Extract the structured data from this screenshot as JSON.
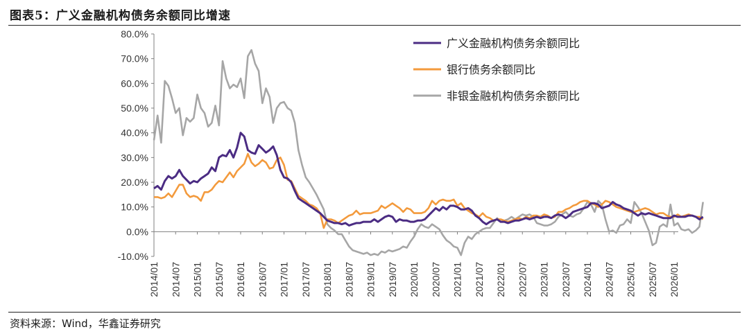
{
  "figure_title": "图表5：广义金融机构债务余额同比增速",
  "source_note": "资料来源：Wind，华鑫证券研究",
  "colors": {
    "series_broad": "#4b2c83",
    "series_bank": "#f39a3c",
    "series_nonbank": "#a6a6a6",
    "axis": "#7f7f7f"
  },
  "chart_data": {
    "type": "line",
    "title": "",
    "xlabel": "",
    "ylabel": "",
    "ylim": [
      -10,
      80
    ],
    "yticks": [
      -10,
      0,
      10,
      20,
      30,
      40,
      50,
      60,
      70,
      80
    ],
    "ytick_labels": [
      "-10.0%",
      "0.0%",
      "10.0%",
      "20.0%",
      "30.0%",
      "40.0%",
      "50.0%",
      "60.0%",
      "70.0%",
      "80.0%"
    ],
    "x_start": "2014/01",
    "x_end": "2026/01",
    "xtick_labels": [
      "2014/01",
      "2014/07",
      "2015/01",
      "2015/07",
      "2016/01",
      "2016/07",
      "2017/01",
      "2017/07",
      "2018/01",
      "2018/07",
      "2019/01",
      "2019/07",
      "2020/01",
      "2020/07",
      "2021/01",
      "2021/07",
      "2022/01",
      "2022/07",
      "2023/01",
      "2023/07",
      "2024/01",
      "2024/07",
      "2025/01",
      "2025/07",
      "2026/01"
    ],
    "legend_position": "top-right",
    "series": [
      {
        "name": "广义金融机构债务余额同比",
        "color_key": "series_broad",
        "values": [
          17.5,
          18.5,
          17.0,
          20.5,
          22.5,
          21.5,
          22.5,
          25.0,
          22.5,
          21.0,
          19.5,
          20.5,
          20.0,
          21.5,
          22.5,
          23.5,
          26.0,
          24.5,
          30.0,
          31.0,
          30.5,
          33.0,
          30.0,
          34.0,
          40.0,
          38.5,
          33.0,
          32.0,
          31.5,
          35.0,
          33.5,
          32.0,
          33.0,
          34.5,
          31.0,
          25.0,
          22.0,
          21.5,
          20.0,
          16.5,
          13.5,
          12.5,
          11.5,
          10.5,
          9.5,
          8.5,
          7.5,
          6.0,
          4.5,
          4.0,
          3.5,
          3.5,
          3.0,
          3.5,
          2.5,
          3.0,
          3.5,
          3.5,
          4.0,
          4.0,
          4.0,
          5.0,
          4.0,
          5.0,
          6.0,
          6.5,
          6.0,
          4.0,
          5.0,
          4.5,
          4.5,
          4.0,
          4.0,
          4.5,
          4.5,
          5.0,
          6.5,
          8.0,
          9.5,
          8.5,
          10.0,
          9.0,
          10.5,
          10.5,
          10.0,
          9.0,
          9.0,
          9.5,
          8.5,
          6.5,
          5.5,
          4.0,
          3.0,
          4.0,
          4.5,
          5.0,
          4.0,
          4.0,
          3.5,
          4.0,
          4.5,
          4.5,
          5.0,
          5.5,
          5.0,
          5.5,
          6.0,
          5.5,
          6.0,
          6.0,
          5.5,
          6.5,
          7.0,
          6.5,
          5.5,
          6.5,
          8.0,
          8.5,
          9.0,
          9.5,
          10.0,
          11.5,
          11.5,
          11.0,
          9.5,
          10.0,
          10.5,
          12.0,
          11.0,
          10.5,
          9.5,
          9.0,
          8.5,
          7.5,
          6.5,
          7.5,
          7.0,
          7.5,
          7.0,
          6.5,
          6.0,
          5.5,
          5.5,
          5.5,
          6.5,
          6.0,
          6.0,
          6.0,
          6.5,
          6.5,
          6.0,
          5.0,
          6.0
        ]
      },
      {
        "name": "银行债务余额同比",
        "color_key": "series_bank",
        "values": [
          14.0,
          14.0,
          13.5,
          14.0,
          15.5,
          14.0,
          16.5,
          19.0,
          19.0,
          15.5,
          14.0,
          14.5,
          14.0,
          12.5,
          16.0,
          16.0,
          17.0,
          19.0,
          20.5,
          20.0,
          22.0,
          24.0,
          22.0,
          24.5,
          26.0,
          27.5,
          31.5,
          28.0,
          26.5,
          27.5,
          29.0,
          28.0,
          25.5,
          26.0,
          29.0,
          30.0,
          27.0,
          21.0,
          20.5,
          17.5,
          14.5,
          13.5,
          12.5,
          11.0,
          10.5,
          9.5,
          7.5,
          1.5,
          5.0,
          5.0,
          4.5,
          3.5,
          4.5,
          5.5,
          6.5,
          7.0,
          8.5,
          7.0,
          7.5,
          7.5,
          7.5,
          8.0,
          8.5,
          10.5,
          9.5,
          10.5,
          11.5,
          10.5,
          9.5,
          8.0,
          9.5,
          9.0,
          7.5,
          7.5,
          7.5,
          8.0,
          9.5,
          12.5,
          11.0,
          12.5,
          13.0,
          12.5,
          12.5,
          13.0,
          10.5,
          11.5,
          9.5,
          8.5,
          7.5,
          7.0,
          6.0,
          7.5,
          6.0,
          5.5,
          4.5,
          5.0,
          5.0,
          4.5,
          4.0,
          4.5,
          5.0,
          5.5,
          5.0,
          6.0,
          5.5,
          6.5,
          6.5,
          6.0,
          7.0,
          6.5,
          5.5,
          6.0,
          8.0,
          8.0,
          9.0,
          9.5,
          10.5,
          11.0,
          12.0,
          12.5,
          12.5,
          11.5,
          11.0,
          10.0,
          11.0,
          12.5,
          12.0,
          11.0,
          10.0,
          9.5,
          9.0,
          8.5,
          8.0,
          8.0,
          8.5,
          9.0,
          9.5,
          9.0,
          8.0,
          7.0,
          7.5,
          7.5,
          6.5,
          6.0,
          6.0,
          7.0,
          6.0,
          6.5,
          7.0,
          6.5,
          6.0,
          6.0,
          5.0
        ]
      },
      {
        "name": "非银金融机构债务余额同比",
        "color_key": "series_nonbank",
        "values": [
          37.0,
          47.0,
          36.0,
          61.0,
          59.0,
          54.0,
          48.0,
          50.0,
          39.0,
          46.0,
          44.5,
          46.0,
          55.5,
          50.0,
          48.0,
          42.5,
          44.0,
          51.0,
          43.0,
          69.0,
          62.0,
          58.0,
          59.5,
          58.5,
          62.0,
          54.0,
          71.0,
          73.5,
          68.0,
          65.0,
          52.0,
          58.0,
          54.5,
          44.0,
          50.0,
          52.0,
          52.5,
          50.0,
          49.0,
          44.0,
          33.0,
          27.0,
          22.0,
          20.0,
          17.5,
          15.0,
          12.0,
          9.0,
          3.0,
          1.5,
          0.5,
          -1.0,
          -1.0,
          -3.5,
          -6.0,
          -7.5,
          -8.0,
          -8.5,
          -9.0,
          -8.5,
          -9.5,
          -9.0,
          -9.5,
          -8.0,
          -8.5,
          -7.5,
          -8.0,
          -7.5,
          -7.0,
          -6.0,
          -6.5,
          -4.0,
          -2.0,
          1.0,
          3.0,
          2.0,
          1.5,
          3.0,
          2.0,
          1.0,
          -1.5,
          -3.5,
          -4.5,
          -6.0,
          -6.5,
          -9.5,
          -4.5,
          -2.0,
          -3.0,
          -1.0,
          0.0,
          1.0,
          1.5,
          1.5,
          3.5,
          5.5,
          4.0,
          4.5,
          5.0,
          6.0,
          5.0,
          6.0,
          7.0,
          6.5,
          7.0,
          6.0,
          3.5,
          3.0,
          2.5,
          2.5,
          3.0,
          4.0,
          6.0,
          7.0,
          8.0,
          6.5,
          6.0,
          7.0,
          7.5,
          9.5,
          12.0,
          11.0,
          8.0,
          12.5,
          11.0,
          5.0,
          0.0,
          0.5,
          -0.5,
          2.5,
          3.0,
          5.0,
          3.5,
          12.0,
          10.0,
          7.5,
          4.0,
          0.5,
          -5.5,
          -4.5,
          2.0,
          3.0,
          2.0,
          11.0,
          2.5,
          3.5,
          1.0,
          0.5,
          1.0,
          -0.5,
          0.5,
          2.0,
          12.0
        ]
      }
    ]
  }
}
